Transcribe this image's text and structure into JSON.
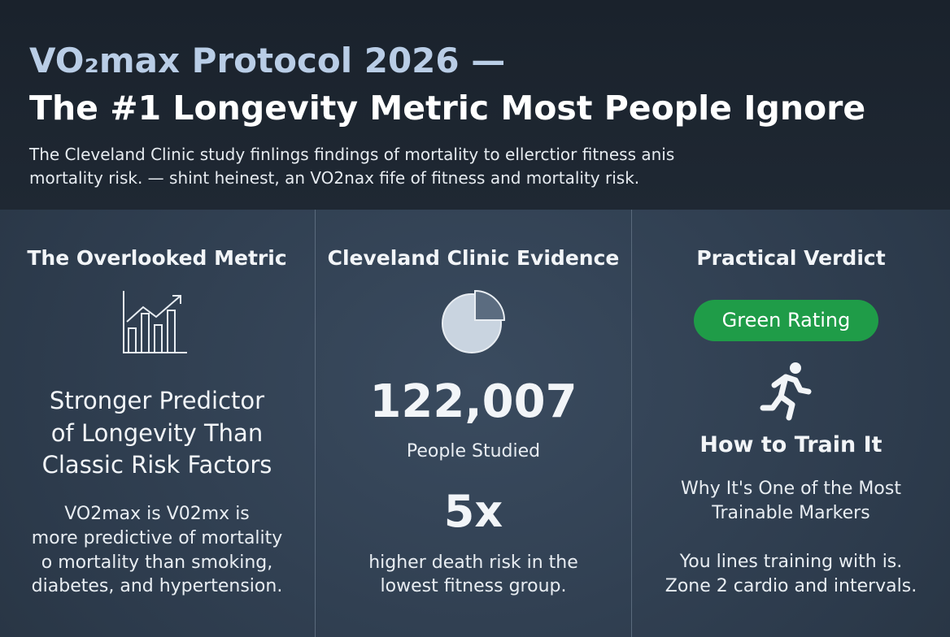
{
  "header": {
    "title_line1": "VO₂max Protocol 2026 —",
    "title_line2": "The #1 Longevity Metric Most People Ignore",
    "subtitle": [
      "The Cleveland Clinic study finlings findings of mortality to ellerctior fitness anis",
      "mortality risk. — shint heinest, an VO2nax fife of fitness and mortality risk."
    ]
  },
  "columns": [
    {
      "heading": "The Overlooked Metric",
      "headline": [
        "Stronger Predictor",
        "of Longevity Than",
        "Classic Risk Factors"
      ],
      "body": [
        "VO2max is V02mx is",
        "more predictive of mortality",
        "o mortality than smoking,",
        "diabetes, and hypertension."
      ]
    },
    {
      "heading": "Cleveland Clinic Evidence",
      "stat1": "122,007",
      "stat1_label": "People Studied",
      "stat2": "5x",
      "stat2_label": [
        "higher death risk in the",
        "lowest fitness group."
      ]
    },
    {
      "heading": "Practical Verdict",
      "badge": "Green Rating",
      "subheading": "How to Train It",
      "subtitle": [
        "Why It's One of the Most",
        "Trainable Markers"
      ],
      "body": [
        "You lines training with is.",
        "Zone 2 cardio and intervals."
      ]
    }
  ]
}
